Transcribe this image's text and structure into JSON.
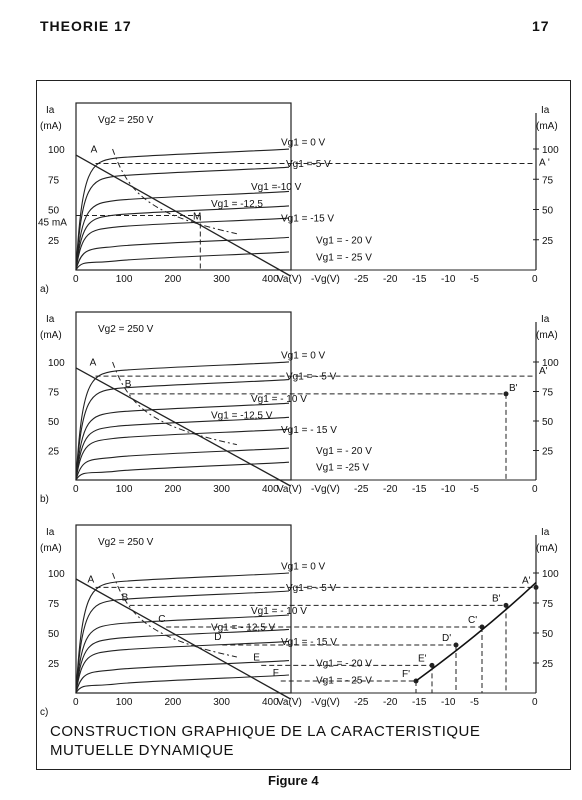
{
  "header": {
    "left": "THEORIE 17",
    "right": "17"
  },
  "caption": {
    "line1": "CONSTRUCTION GRAPHIQUE DE LA CARACTERISTIQUE",
    "line2": "MUTUELLE DYNAMIQUE"
  },
  "figure_label": "Figure 4",
  "axes": {
    "ia_label": "Ia",
    "ma_label": "(mA)",
    "va_label": "Va(V)",
    "vg_label": "-Vg(V)",
    "va_ticks": [
      "0",
      "100",
      "200",
      "300",
      "400"
    ],
    "vg_ticks": [
      "-25",
      "-20",
      "-15",
      "-10",
      "-5",
      "0"
    ],
    "ia_ticks": [
      "25",
      "50",
      "75",
      "100"
    ]
  },
  "panels": [
    {
      "tag": "a)",
      "vg2_label": "Vg2 = 250 V",
      "curve_labels": [
        "Vg1 = 0 V",
        "Vg1 =-5 V",
        "Vg1 =-10 V",
        "Vg1 = -12,5",
        "Vg1 = -15 V",
        "Vg1 = - 20 V",
        "Vg1 = - 25 V"
      ],
      "points": [
        "A",
        "A '",
        "M"
      ],
      "extra": "45 mA"
    },
    {
      "tag": "b)",
      "vg2_label": "Vg2 = 250 V",
      "curve_labels": [
        "Vg1 = 0 V",
        "Vg1 = - 5 V",
        "Vg1 = - 10 V",
        "Vg1 = -12,5 V",
        "Vg1 = - 15 V",
        "Vg1 = - 20 V",
        "Vg1 = -25 V"
      ],
      "points": [
        "A",
        "B",
        "A'",
        "B'"
      ]
    },
    {
      "tag": "c)",
      "vg2_label": "Vg2 = 250 V",
      "curve_labels": [
        "Vg1 = 0 V",
        "Vg1 = - 5 V",
        "Vg1 = - 10 V",
        "Vg1 = - 12,5 V",
        "Vg1 = - 15 V",
        "Vg1 = - 20 V",
        "Vg1 = - 25 V"
      ],
      "points": [
        "A",
        "B",
        "C",
        "D",
        "E",
        "F",
        "A'",
        "B'",
        "C'",
        "D'",
        "E'",
        "F'"
      ]
    }
  ]
}
